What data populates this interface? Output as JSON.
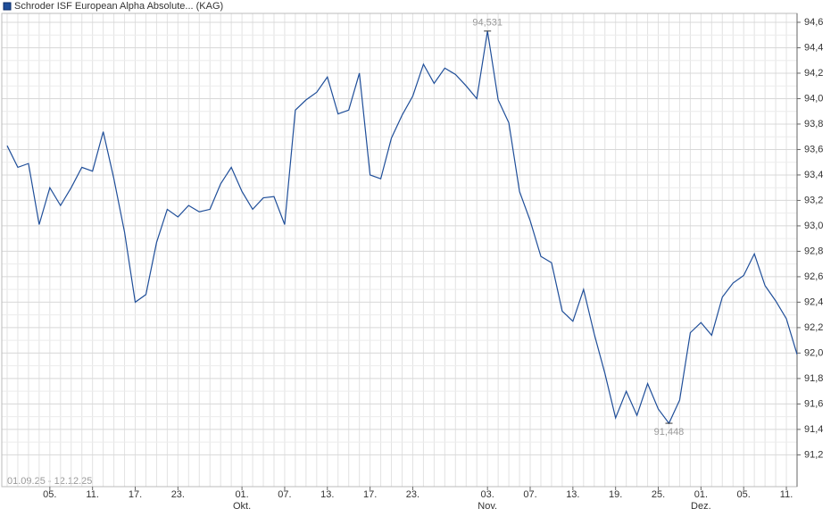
{
  "chart_data": {
    "type": "line",
    "title": "Schroder ISF European Alpha Absolute... (KAG)",
    "date_range": "01.09.25 - 12.12.25",
    "categories": [
      null,
      null,
      null,
      null,
      "05.",
      null,
      null,
      null,
      "11.",
      null,
      null,
      null,
      "17.",
      null,
      null,
      null,
      "23.",
      null,
      null,
      null,
      null,
      null,
      "01.\nOkt.",
      null,
      null,
      null,
      "07.",
      null,
      null,
      null,
      "13.",
      null,
      null,
      null,
      "17.",
      null,
      null,
      null,
      "23.",
      null,
      null,
      null,
      null,
      null,
      null,
      "03.\nNov.",
      null,
      null,
      null,
      "07.",
      null,
      null,
      null,
      "13.",
      null,
      null,
      null,
      "19.",
      null,
      null,
      null,
      "25.",
      null,
      null,
      null,
      "01.\nDez.",
      null,
      null,
      null,
      "05.",
      null,
      null,
      null,
      "11.",
      null
    ],
    "series": [
      {
        "name": "Schroder ISF European Alpha Absolute... (KAG)",
        "color": "#1f4e99",
        "values": [
          93.63,
          93.46,
          93.49,
          93.01,
          93.3,
          93.16,
          93.3,
          93.46,
          93.43,
          93.74,
          93.37,
          92.95,
          92.4,
          92.46,
          92.87,
          93.13,
          93.07,
          93.16,
          93.11,
          93.13,
          93.33,
          93.46,
          93.27,
          93.13,
          93.22,
          93.23,
          93.01,
          93.91,
          93.99,
          94.05,
          94.17,
          93.88,
          93.91,
          94.2,
          93.4,
          93.37,
          93.69,
          93.87,
          94.02,
          94.27,
          94.12,
          94.24,
          94.19,
          94.1,
          94.0,
          94.531,
          93.99,
          93.81,
          93.27,
          93.04,
          92.76,
          92.71,
          92.33,
          92.25,
          92.5,
          92.15,
          91.84,
          91.49,
          91.7,
          91.51,
          91.76,
          91.56,
          91.448,
          91.63,
          92.16,
          92.24,
          92.14,
          92.44,
          92.55,
          92.61,
          92.78,
          92.53,
          92.41,
          92.27,
          91.99
        ],
        "value_labels": [
          null,
          null,
          null,
          null,
          null,
          null,
          null,
          null,
          null,
          null,
          null,
          null,
          null,
          null,
          null,
          null,
          null,
          null,
          null,
          null,
          null,
          null,
          null,
          null,
          null,
          null,
          null,
          null,
          null,
          null,
          null,
          null,
          null,
          null,
          null,
          null,
          null,
          null,
          null,
          null,
          null,
          null,
          null,
          null,
          null,
          "94,531",
          null,
          null,
          null,
          null,
          null,
          null,
          null,
          null,
          null,
          null,
          null,
          null,
          null,
          null,
          null,
          null,
          "91,448",
          null,
          null,
          null,
          null,
          null,
          null,
          null,
          null,
          null,
          null,
          null,
          null
        ]
      }
    ],
    "ylim": [
      90.95,
      94.67
    ],
    "yticks": [
      {
        "value": 91.2,
        "label": "91,2"
      },
      {
        "value": 91.4,
        "label": "91,4"
      },
      {
        "value": 91.6,
        "label": "91,6"
      },
      {
        "value": 91.8,
        "label": "91,8"
      },
      {
        "value": 92.0,
        "label": "92,0"
      },
      {
        "value": 92.2,
        "label": "92,2"
      },
      {
        "value": 92.4,
        "label": "92,4"
      },
      {
        "value": 92.6,
        "label": "92,6"
      },
      {
        "value": 92.8,
        "label": "92,8"
      },
      {
        "value": 93.0,
        "label": "93,0"
      },
      {
        "value": 93.2,
        "label": "93,2"
      },
      {
        "value": 93.4,
        "label": "93,4"
      },
      {
        "value": 93.6,
        "label": "93,6"
      },
      {
        "value": 93.8,
        "label": "93,8"
      },
      {
        "value": 94.0,
        "label": "94,0"
      },
      {
        "value": 94.2,
        "label": "94,2"
      },
      {
        "value": 94.4,
        "label": "94,4"
      },
      {
        "value": 94.6,
        "label": "94,6"
      }
    ],
    "grid": true
  }
}
